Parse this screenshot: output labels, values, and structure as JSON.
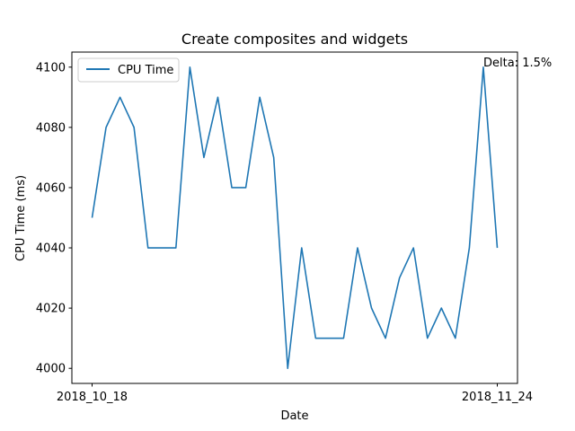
{
  "chart_data": {
    "type": "line",
    "title": "Create composites and widgets",
    "xlabel": "Date",
    "ylabel": "CPU Time (ms)",
    "x_tick_labels": [
      "2018_10_18",
      "2018_11_24"
    ],
    "ylim": [
      3995,
      4105
    ],
    "y_ticks": [
      4000,
      4020,
      4040,
      4060,
      4080,
      4100
    ],
    "legend_position": "top-left",
    "annotation": "Delta: 1.5%",
    "series": [
      {
        "name": "CPU Time",
        "color": "#1f77b4",
        "values": [
          4050,
          4080,
          4090,
          4080,
          4040,
          4040,
          4040,
          4100,
          4070,
          4090,
          4060,
          4060,
          4090,
          4070,
          4000,
          4040,
          4010,
          4010,
          4010,
          4040,
          4020,
          4010,
          4030,
          4040,
          4010,
          4020,
          4010,
          4040,
          4100,
          4040
        ]
      }
    ]
  }
}
